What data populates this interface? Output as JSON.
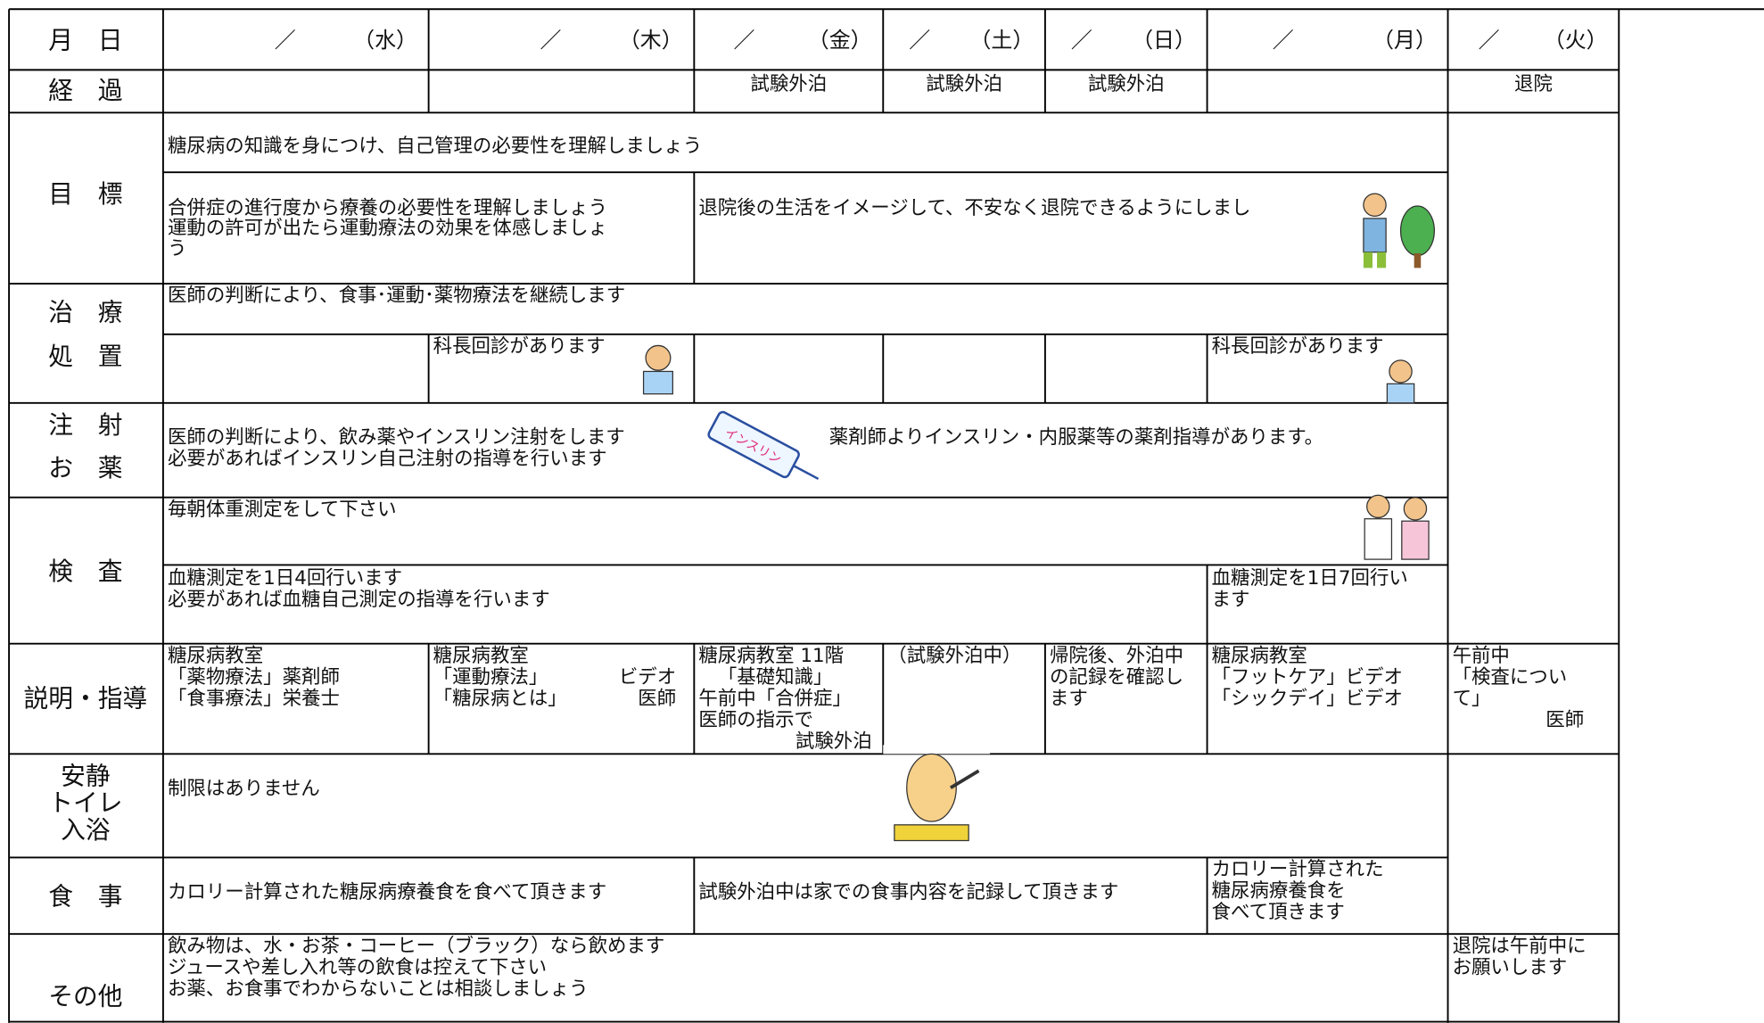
{
  "header": {
    "label": "月　日",
    "days": [
      [
        "／",
        "（水）"
      ],
      [
        "／",
        "（木）"
      ],
      [
        "／",
        "（金）"
      ],
      [
        "／",
        "（土）"
      ],
      [
        "／",
        "（日）"
      ],
      [
        "／",
        "（月）"
      ],
      [
        "／",
        "（火）"
      ]
    ]
  },
  "progress": {
    "label": "経　過",
    "cells": [
      "試験外泊",
      "試験外泊",
      "試験外泊",
      "退院"
    ]
  },
  "goal": {
    "label": "目　標",
    "main": "糖尿病の知識を身につけ、自己管理の必要性を理解しましょう",
    "left": [
      "合併症の進行度から療養の必要性を理解しましょう",
      "運動の許可が出たら運動療法の効果を体感しましょ",
      "う"
    ],
    "right": "退院後の生活をイメージして、不安なく退院できるようにしまし"
  },
  "treatment": {
    "label": [
      "治　療",
      "処　置"
    ],
    "main": "医師の判断により、食事･運動･薬物療法を継続します",
    "rounds": [
      "科長回診があります",
      "科長回診があります"
    ]
  },
  "medication": {
    "label": [
      "注　射",
      "お　薬"
    ],
    "left": [
      "医師の判断により、飲み薬やインスリン注射をします",
      "必要があればインスリン自己注射の指導を行います"
    ],
    "right": "薬剤師よりインスリン・内服薬等の薬剤指導があります。",
    "syringe": "インスリン"
  },
  "test": {
    "label": "検　査",
    "main": "毎朝体重測定をして下さい",
    "left": [
      "血糖測定を1日4回行います",
      "必要があれば血糖自己測定の指導を行います"
    ],
    "right": [
      "血糖測定を1日7回行い",
      "ます"
    ]
  },
  "guidance": {
    "label": "説明・指導",
    "cells": [
      [
        "糖尿病教室",
        "「薬物療法」薬剤師",
        "「食事療法」栄養士"
      ],
      [
        "糖尿病教室",
        "「運動療法」",
        "ビデオ",
        "「糖尿病とは」",
        "医師"
      ],
      [
        "糖尿病教室 11階",
        "「基礎知識」",
        "午前中「合併症」",
        "医師の指示で",
        "試験外泊"
      ],
      [
        "（試験外泊中）"
      ],
      [
        "帰院後、外泊中",
        "の記録を確認し",
        "ます"
      ],
      [
        "糖尿病教室",
        "「フットケア」ビデオ",
        "「シックデイ」ビデオ"
      ],
      [
        "午前中",
        "「検査につい",
        "て」",
        "医師"
      ]
    ]
  },
  "rest": {
    "label": [
      "安静",
      "トイレ",
      "入浴"
    ],
    "text": "制限はありません"
  },
  "meal": {
    "label": "食　事",
    "cells": [
      "カロリー計算された糖尿病療養食を食べて頂きます",
      "試験外泊中は家での食事内容を記録して頂きます",
      [
        "カロリー計算された",
        "糖尿病療養食を",
        "食べて頂きます"
      ]
    ]
  },
  "other": {
    "label": "その他",
    "left": [
      "飲み物は、水・お茶・コーヒー（ブラック）なら飲めます",
      "ジュースや差し入れ等の飲食は控えて下さい",
      "お薬、お食事でわからないことは相談しましょう"
    ],
    "right": [
      "退院は午前中に",
      "お願いします"
    ]
  }
}
